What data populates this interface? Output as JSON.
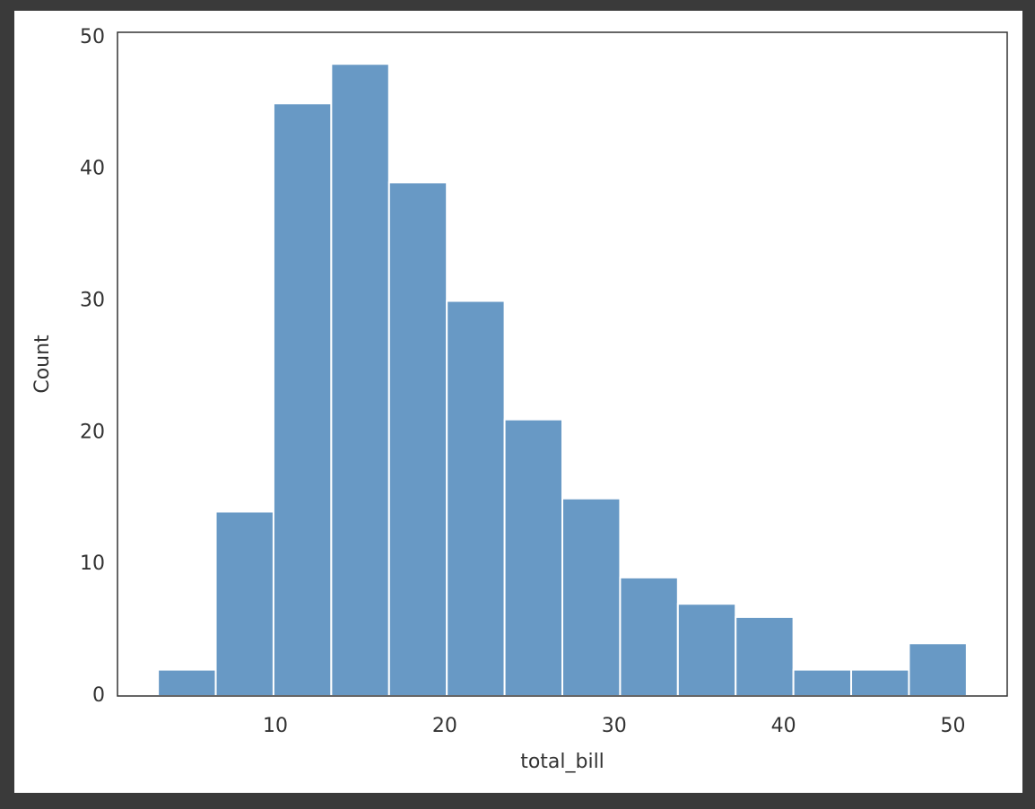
{
  "chart_data": {
    "type": "histogram",
    "xlabel": "total_bill",
    "ylabel": "Count",
    "bins": [
      3.07,
      6.48,
      9.89,
      13.3,
      16.71,
      20.12,
      23.53,
      26.94,
      30.35,
      33.76,
      37.17,
      40.58,
      43.99,
      47.4,
      50.81
    ],
    "values": [
      2,
      14,
      45,
      48,
      39,
      30,
      21,
      15,
      9,
      7,
      6,
      2,
      2,
      4
    ],
    "color": "#6899c5",
    "xlim": [
      0.68,
      53.2
    ],
    "xticks": [
      10,
      20,
      30,
      40,
      50
    ],
    "ylim": [
      0,
      50.4
    ],
    "yticks": [
      0,
      10,
      20,
      30,
      40,
      50
    ]
  }
}
